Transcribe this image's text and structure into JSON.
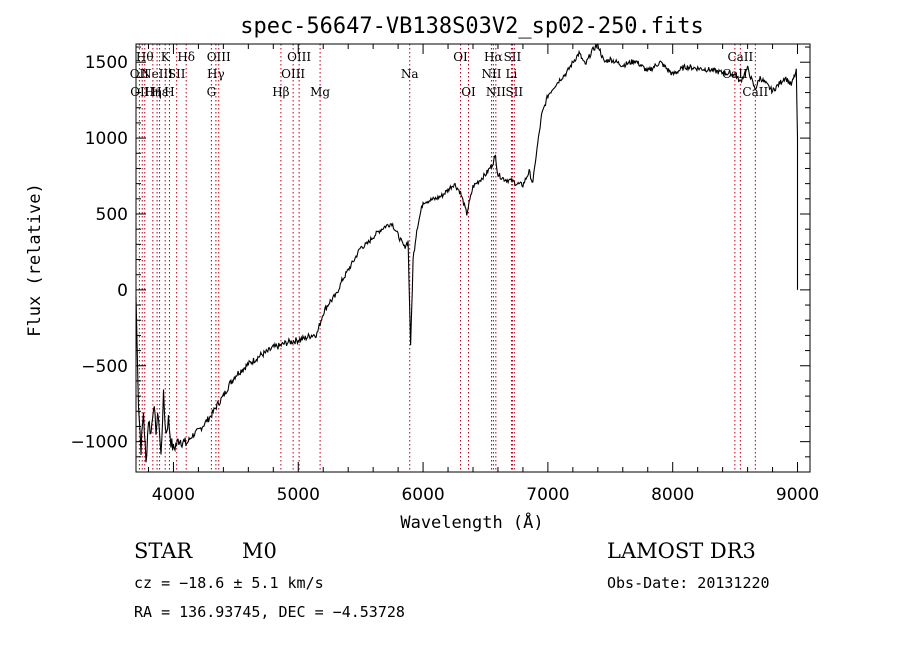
{
  "chart_data": {
    "type": "line",
    "title": "spec-56647-VB138S03V2_sp02-250.fits",
    "xlabel": "Wavelength (Å)",
    "ylabel": "Flux (relative)",
    "xlim": [
      3700,
      9100
    ],
    "ylim": [
      -1200,
      1620
    ],
    "xticks": [
      4000,
      5000,
      6000,
      7000,
      8000,
      9000
    ],
    "yticks": [
      -1000,
      -500,
      0,
      500,
      1000,
      1500
    ],
    "ytick_labels": [
      "−1000",
      "−500",
      "0",
      "500",
      "1000",
      "1500"
    ],
    "series": [
      {
        "name": "flux",
        "x": [
          3700,
          3720,
          3740,
          3760,
          3780,
          3800,
          3820,
          3840,
          3860,
          3880,
          3900,
          3920,
          3940,
          3960,
          3980,
          4000,
          4050,
          4100,
          4150,
          4200,
          4250,
          4300,
          4350,
          4400,
          4450,
          4500,
          4600,
          4700,
          4750,
          4800,
          4850,
          4900,
          4950,
          5000,
          5050,
          5100,
          5150,
          5200,
          5250,
          5300,
          5350,
          5400,
          5450,
          5500,
          5550,
          5600,
          5650,
          5700,
          5750,
          5800,
          5850,
          5880,
          5900,
          5920,
          5950,
          6000,
          6050,
          6100,
          6150,
          6200,
          6250,
          6300,
          6350,
          6400,
          6450,
          6500,
          6550,
          6580,
          6600,
          6650,
          6700,
          6750,
          6800,
          6850,
          6880,
          6900,
          6950,
          7000,
          7050,
          7100,
          7150,
          7200,
          7250,
          7300,
          7350,
          7400,
          7450,
          7500,
          7600,
          7700,
          7800,
          7900,
          8000,
          8100,
          8200,
          8300,
          8400,
          8500,
          8540,
          8600,
          8660,
          8700,
          8800,
          8900,
          8950,
          8990,
          9000
        ],
        "y": [
          -40,
          -750,
          -1050,
          -800,
          -1150,
          -850,
          -950,
          -750,
          -920,
          -820,
          -1100,
          -700,
          -950,
          -850,
          -1000,
          -1050,
          -980,
          -1020,
          -960,
          -930,
          -880,
          -830,
          -760,
          -700,
          -620,
          -560,
          -490,
          -430,
          -410,
          -380,
          -370,
          -350,
          -340,
          -330,
          -320,
          -300,
          -290,
          -150,
          -80,
          -40,
          60,
          130,
          200,
          280,
          300,
          350,
          390,
          420,
          440,
          360,
          280,
          320,
          -380,
          200,
          400,
          580,
          590,
          600,
          620,
          660,
          700,
          640,
          500,
          680,
          720,
          760,
          820,
          880,
          760,
          730,
          720,
          700,
          690,
          780,
          700,
          850,
          1150,
          1280,
          1340,
          1390,
          1430,
          1500,
          1560,
          1480,
          1570,
          1620,
          1500,
          1520,
          1480,
          1510,
          1440,
          1500,
          1420,
          1470,
          1460,
          1450,
          1430,
          1420,
          1370,
          1460,
          1320,
          1400,
          1310,
          1400,
          1350,
          1440,
          1000
        ]
      }
    ],
    "lines": [
      {
        "w": 3727,
        "label": "OII",
        "row": 2
      },
      {
        "w": 3750,
        "label": "OIII",
        "row": 3
      },
      {
        "w": 3770,
        "label": "Hθ",
        "row": 1
      },
      {
        "w": 3835,
        "label": "Hη",
        "row": 3
      },
      {
        "w": 3869,
        "label": "NeIII",
        "row": 2
      },
      {
        "w": 3889,
        "label": "Hε",
        "row": 3
      },
      {
        "w": 3934,
        "label": "K",
        "row": 1
      },
      {
        "w": 3968,
        "label": "H",
        "row": 3
      },
      {
        "w": 4026,
        "label": "SII",
        "row": 2
      },
      {
        "w": 4102,
        "label": "Hδ",
        "row": 1
      },
      {
        "w": 4304,
        "label": "G",
        "row": 3
      },
      {
        "w": 4340,
        "label": "Hγ",
        "row": 2
      },
      {
        "w": 4363,
        "label": "OIII",
        "row": 1
      },
      {
        "w": 4861,
        "label": "Hβ",
        "row": 3
      },
      {
        "w": 4959,
        "label": "OIII",
        "row": 2
      },
      {
        "w": 5007,
        "label": "OIII",
        "row": 1
      },
      {
        "w": 5175,
        "label": "Mg",
        "row": 3
      },
      {
        "w": 5893,
        "label": "Na",
        "row": 2
      },
      {
        "w": 6300,
        "label": "OI",
        "row": 1
      },
      {
        "w": 6364,
        "label": "OI",
        "row": 3
      },
      {
        "w": 6548,
        "label": "NII",
        "row": 2
      },
      {
        "w": 6563,
        "label": "Hα",
        "row": 1
      },
      {
        "w": 6583,
        "label": "NII",
        "row": 3
      },
      {
        "w": 6708,
        "label": "Li",
        "row": 2
      },
      {
        "w": 6716,
        "label": "SII",
        "row": 1
      },
      {
        "w": 6731,
        "label": "SII",
        "row": 3
      },
      {
        "w": 8498,
        "label": "CaII",
        "row": 2
      },
      {
        "w": 8542,
        "label": "CaII",
        "row": 1
      },
      {
        "w": 8662,
        "label": "CaII",
        "row": 3
      }
    ],
    "grid": false
  },
  "info": {
    "class": "STAR",
    "subclass": "M0",
    "survey": "LAMOST DR3",
    "cz": "cz = −18.6 ± 5.1 km/s",
    "obs_date": "Obs-Date: 20131220",
    "radec": "RA = 136.93745, DEC =  −4.53728"
  },
  "colors": {
    "spectrum": "#000000",
    "line_markers": "#b3001b",
    "axes": "#000000",
    "background": "#ffffff"
  }
}
